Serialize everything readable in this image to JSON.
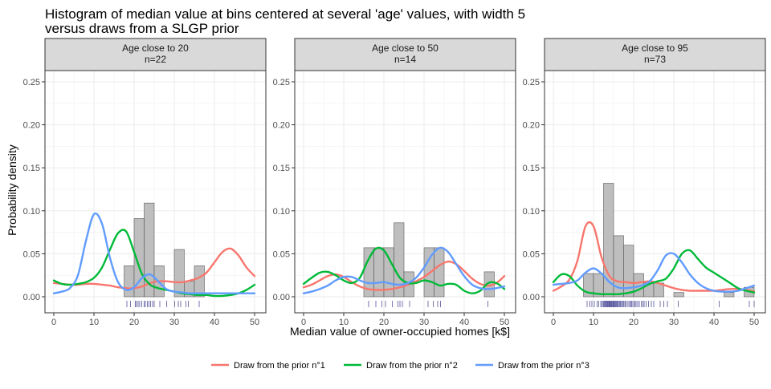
{
  "title_line1": "Histogram of median value at bins centered at several 'age' values, with width 5",
  "title_line2": "versus draws from a SLGP prior",
  "xlabel": "Median value of owner-occupied homes [k$]",
  "ylabel": "Probability density",
  "colors": {
    "prior1": "#F8766D",
    "prior2": "#00BA38",
    "prior3": "#619CFF",
    "bar_fill": "#BEBEBE",
    "bar_stroke": "#595959",
    "rug": "#3B3B8F",
    "strip_bg": "#D9D9D9"
  },
  "legend": [
    {
      "label": "Draw from the prior n°1",
      "color": "#F8766D"
    },
    {
      "label": "Draw from the prior n°2",
      "color": "#00BA38"
    },
    {
      "label": "Draw from the prior n°3",
      "color": "#619CFF"
    }
  ],
  "chart_data": {
    "type": "histogram+line",
    "xlim": [
      0,
      50
    ],
    "ylim": [
      0,
      0.26
    ],
    "x_ticks": [
      0,
      10,
      20,
      30,
      40,
      50
    ],
    "y_ticks": [
      0.0,
      0.05,
      0.1,
      0.15,
      0.2,
      0.25
    ],
    "y_tick_labels": [
      "0.00",
      "0.05",
      "0.10",
      "0.15",
      "0.20",
      "0.25"
    ],
    "panels": [
      {
        "strip_line1": "Age close to 20",
        "strip_line2": "n=22",
        "bin_width": 2.5,
        "bins": [
          {
            "x0": 17.5,
            "density": 0.036
          },
          {
            "x0": 20.0,
            "density": 0.091
          },
          {
            "x0": 22.5,
            "density": 0.109
          },
          {
            "x0": 25.0,
            "density": 0.036
          },
          {
            "x0": 30.0,
            "density": 0.055
          },
          {
            "x0": 32.5,
            "density": 0.018
          },
          {
            "x0": 35.0,
            "density": 0.036
          }
        ],
        "rug": [
          18.2,
          19.1,
          20.3,
          20.6,
          21.0,
          21.4,
          21.9,
          22.5,
          22.8,
          23.3,
          23.7,
          24.1,
          24.6,
          25.0,
          26.4,
          28.1,
          30.1,
          31.0,
          31.6,
          32.9,
          33.5,
          36.2
        ],
        "series": [
          {
            "name": "Draw from the prior n°1",
            "x": [
              0,
              2,
              4,
              6,
              8,
              10,
              12,
              14,
              16,
              18,
              20,
              22,
              24,
              26,
              28,
              30,
              32,
              34,
              36,
              38,
              40,
              42,
              44,
              46,
              48,
              50
            ],
            "y": [
              0.016,
              0.015,
              0.014,
              0.014,
              0.015,
              0.015,
              0.014,
              0.013,
              0.011,
              0.01,
              0.01,
              0.012,
              0.016,
              0.018,
              0.018,
              0.017,
              0.017,
              0.019,
              0.022,
              0.028,
              0.04,
              0.052,
              0.056,
              0.048,
              0.034,
              0.024
            ]
          },
          {
            "name": "Draw from the prior n°2",
            "x": [
              0,
              2,
              4,
              6,
              8,
              10,
              12,
              14,
              16,
              18,
              20,
              22,
              24,
              26,
              28,
              30,
              32,
              34,
              36,
              38,
              40,
              42,
              44,
              46,
              48,
              50
            ],
            "y": [
              0.019,
              0.015,
              0.014,
              0.015,
              0.017,
              0.022,
              0.034,
              0.055,
              0.074,
              0.076,
              0.052,
              0.026,
              0.014,
              0.01,
              0.008,
              0.006,
              0.004,
              0.003,
              0.002,
              0.002,
              0.001,
              0.001,
              0.002,
              0.004,
              0.008,
              0.014
            ]
          },
          {
            "name": "Draw from the prior n°3",
            "x": [
              0,
              2,
              4,
              6,
              8,
              10,
              12,
              14,
              16,
              18,
              20,
              22,
              24,
              26,
              28,
              30,
              32,
              34,
              36,
              38,
              40,
              42,
              44,
              46,
              48,
              50
            ],
            "y": [
              0.004,
              0.006,
              0.01,
              0.025,
              0.065,
              0.096,
              0.085,
              0.045,
              0.017,
              0.008,
              0.011,
              0.022,
              0.026,
              0.018,
              0.009,
              0.006,
              0.005,
              0.004,
              0.004,
              0.004,
              0.004,
              0.004,
              0.004,
              0.004,
              0.004,
              0.004
            ]
          }
        ]
      },
      {
        "strip_line1": "Age close to 50",
        "strip_line2": "n=14",
        "bin_width": 2.5,
        "bins": [
          {
            "x0": 15.0,
            "density": 0.057
          },
          {
            "x0": 17.5,
            "density": 0.057
          },
          {
            "x0": 20.0,
            "density": 0.057
          },
          {
            "x0": 22.5,
            "density": 0.086
          },
          {
            "x0": 25.0,
            "density": 0.029
          },
          {
            "x0": 30.0,
            "density": 0.057
          },
          {
            "x0": 32.5,
            "density": 0.057
          },
          {
            "x0": 45.0,
            "density": 0.029
          }
        ],
        "rug": [
          16.2,
          18.0,
          19.5,
          20.4,
          22.1,
          23.5,
          24.0,
          24.6,
          26.4,
          31.0,
          32.3,
          33.4,
          34.1,
          45.9
        ],
        "series": [
          {
            "name": "Draw from the prior n°1",
            "x": [
              0,
              2,
              4,
              6,
              8,
              10,
              12,
              14,
              16,
              18,
              20,
              22,
              24,
              26,
              28,
              30,
              32,
              34,
              36,
              38,
              40,
              42,
              44,
              46,
              48,
              50
            ],
            "y": [
              0.011,
              0.014,
              0.019,
              0.024,
              0.026,
              0.023,
              0.017,
              0.012,
              0.009,
              0.008,
              0.008,
              0.009,
              0.011,
              0.014,
              0.018,
              0.023,
              0.03,
              0.037,
              0.041,
              0.038,
              0.03,
              0.021,
              0.015,
              0.013,
              0.016,
              0.024
            ]
          },
          {
            "name": "Draw from the prior n°2",
            "x": [
              0,
              2,
              4,
              6,
              8,
              10,
              12,
              14,
              16,
              18,
              20,
              22,
              24,
              26,
              28,
              30,
              32,
              34,
              36,
              38,
              40,
              42,
              44,
              46,
              48,
              50
            ],
            "y": [
              0.015,
              0.022,
              0.028,
              0.029,
              0.025,
              0.019,
              0.016,
              0.022,
              0.042,
              0.056,
              0.054,
              0.038,
              0.022,
              0.016,
              0.016,
              0.019,
              0.017,
              0.013,
              0.015,
              0.014,
              0.007,
              0.004,
              0.007,
              0.016,
              0.016,
              0.009
            ]
          },
          {
            "name": "Draw from the prior n°3",
            "x": [
              0,
              2,
              4,
              6,
              8,
              10,
              12,
              14,
              16,
              18,
              20,
              22,
              24,
              26,
              28,
              30,
              32,
              34,
              36,
              38,
              40,
              42,
              44,
              46,
              48,
              50
            ],
            "y": [
              0.004,
              0.006,
              0.009,
              0.013,
              0.019,
              0.023,
              0.023,
              0.019,
              0.016,
              0.016,
              0.017,
              0.015,
              0.014,
              0.016,
              0.022,
              0.034,
              0.049,
              0.057,
              0.052,
              0.038,
              0.024,
              0.014,
              0.01,
              0.009,
              0.01,
              0.012
            ]
          }
        ]
      },
      {
        "strip_line1": "Age close to 95",
        "strip_line2": "n=73",
        "bin_width": 2.5,
        "bins": [
          {
            "x0": 7.5,
            "density": 0.027
          },
          {
            "x0": 10.0,
            "density": 0.027
          },
          {
            "x0": 12.5,
            "density": 0.132
          },
          {
            "x0": 15.0,
            "density": 0.071
          },
          {
            "x0": 17.5,
            "density": 0.06
          },
          {
            "x0": 20.0,
            "density": 0.027
          },
          {
            "x0": 22.5,
            "density": 0.016
          },
          {
            "x0": 25.0,
            "density": 0.016
          },
          {
            "x0": 30.0,
            "density": 0.005
          },
          {
            "x0": 42.5,
            "density": 0.005
          },
          {
            "x0": 47.5,
            "density": 0.011
          }
        ],
        "rug": [
          8.4,
          9.1,
          9.6,
          10.2,
          10.9,
          11.3,
          11.8,
          12.1,
          12.4,
          12.6,
          12.8,
          13.0,
          13.1,
          13.3,
          13.5,
          13.6,
          13.8,
          13.9,
          14.0,
          14.2,
          14.3,
          14.5,
          14.6,
          14.8,
          15.0,
          15.1,
          15.2,
          15.4,
          15.6,
          15.8,
          16.0,
          16.1,
          16.4,
          16.6,
          16.8,
          17.1,
          17.2,
          17.5,
          17.8,
          18.0,
          18.4,
          18.8,
          19.1,
          19.4,
          19.6,
          20.0,
          20.3,
          20.6,
          21.0,
          21.4,
          21.9,
          22.3,
          22.6,
          23.1,
          23.7,
          24.4,
          25.0,
          26.6,
          27.5,
          28.4,
          31.1,
          41.3,
          48.8,
          50.0
        ],
        "series": [
          {
            "name": "Draw from the prior n°1",
            "x": [
              0,
              2,
              4,
              6,
              8,
              10,
              12,
              14,
              16,
              18,
              20,
              22,
              24,
              26,
              28,
              30,
              32,
              34,
              36,
              38,
              40,
              42,
              44,
              46,
              48,
              50
            ],
            "y": [
              0.007,
              0.012,
              0.02,
              0.042,
              0.082,
              0.082,
              0.046,
              0.024,
              0.018,
              0.017,
              0.016,
              0.017,
              0.018,
              0.016,
              0.013,
              0.01,
              0.008,
              0.007,
              0.007,
              0.007,
              0.007,
              0.008,
              0.009,
              0.009,
              0.008,
              0.006
            ]
          },
          {
            "name": "Draw from the prior n°2",
            "x": [
              0,
              2,
              4,
              6,
              8,
              10,
              12,
              14,
              16,
              18,
              20,
              22,
              24,
              26,
              28,
              30,
              32,
              34,
              36,
              38,
              40,
              42,
              44,
              46,
              48,
              50
            ],
            "y": [
              0.017,
              0.026,
              0.024,
              0.013,
              0.006,
              0.004,
              0.003,
              0.003,
              0.003,
              0.004,
              0.006,
              0.01,
              0.015,
              0.018,
              0.021,
              0.033,
              0.05,
              0.054,
              0.044,
              0.034,
              0.028,
              0.022,
              0.016,
              0.01,
              0.007,
              0.005
            ]
          },
          {
            "name": "Draw from the prior n°3",
            "x": [
              0,
              2,
              4,
              6,
              8,
              10,
              12,
              14,
              16,
              18,
              20,
              22,
              24,
              26,
              28,
              30,
              32,
              34,
              36,
              38,
              40,
              42,
              44,
              46,
              48,
              50
            ],
            "y": [
              0.014,
              0.015,
              0.016,
              0.019,
              0.028,
              0.033,
              0.027,
              0.017,
              0.011,
              0.01,
              0.011,
              0.013,
              0.018,
              0.031,
              0.048,
              0.05,
              0.04,
              0.026,
              0.016,
              0.01,
              0.007,
              0.006,
              0.006,
              0.007,
              0.01,
              0.013
            ]
          }
        ]
      }
    ]
  }
}
